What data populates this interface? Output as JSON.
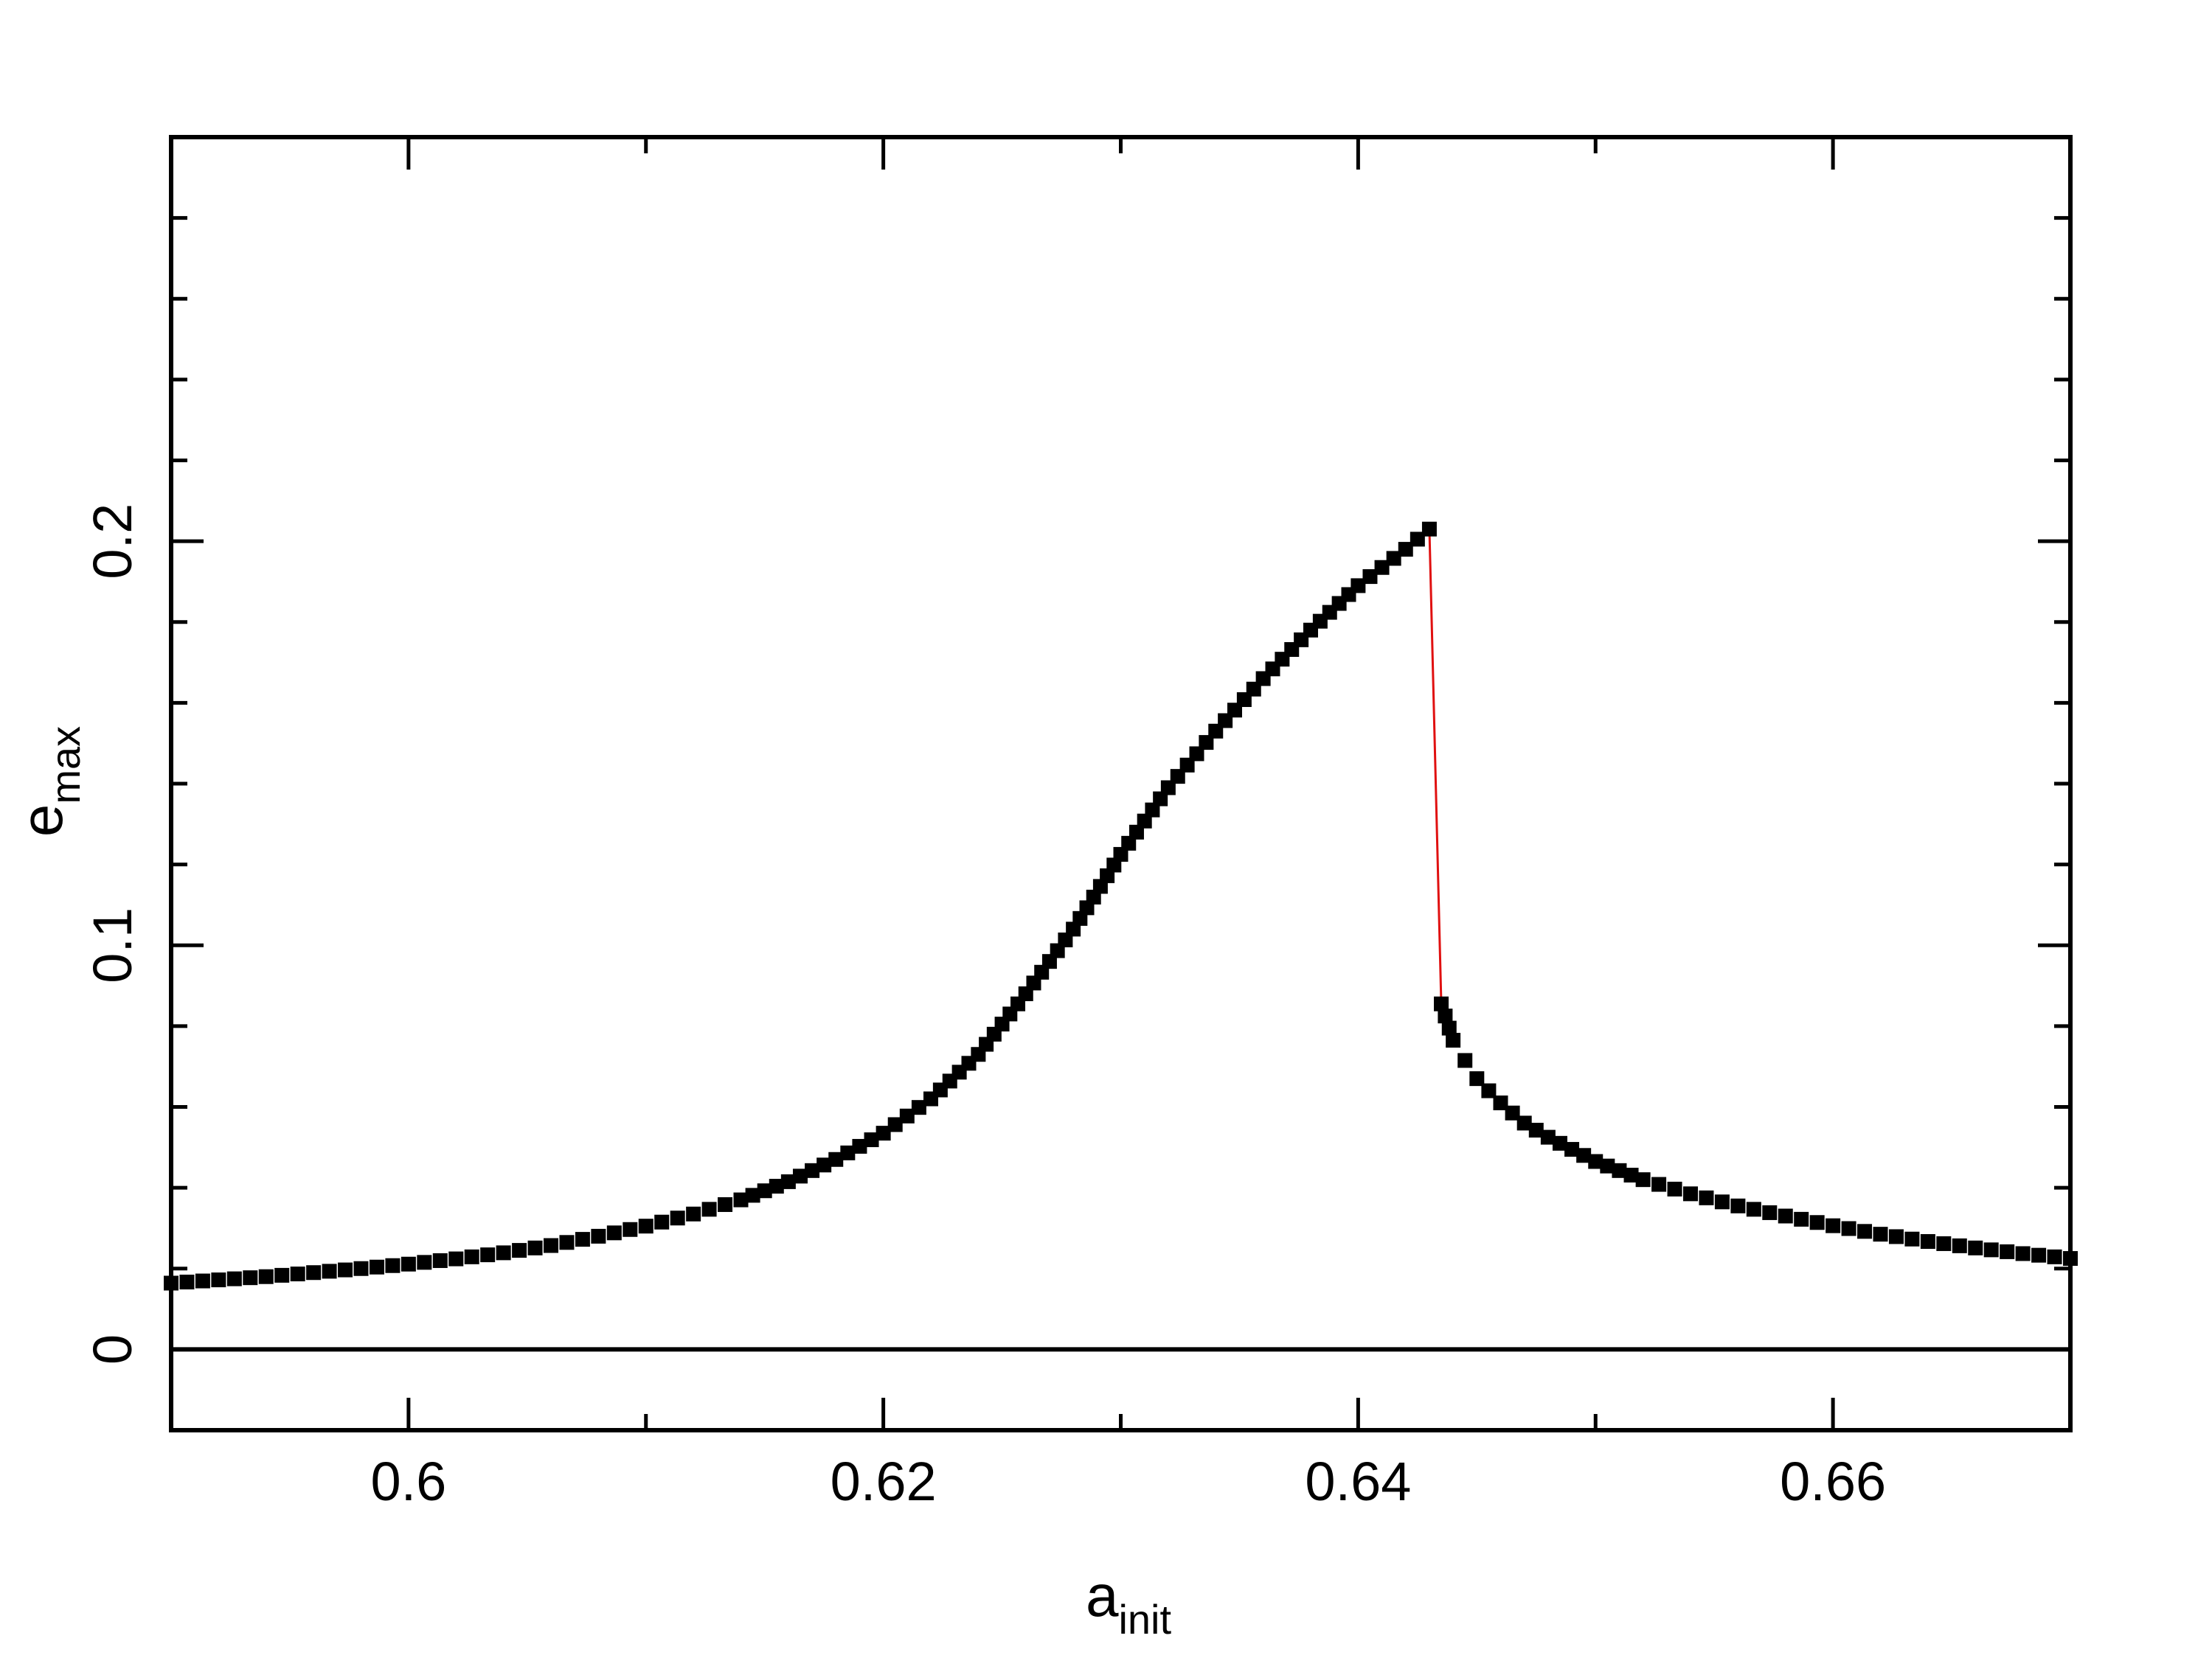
{
  "chart_data": {
    "type": "scatter",
    "title": "",
    "xlabel": "a",
    "xlabel_sub": "init",
    "ylabel": "e",
    "ylabel_sub": "max",
    "xlim": [
      0.59,
      0.67
    ],
    "ylim": [
      -0.02,
      0.3
    ],
    "x_ticks": [
      0.6,
      0.62,
      0.64,
      0.66
    ],
    "x_tick_labels": [
      "0.6",
      "0.62",
      "0.64",
      "0.66"
    ],
    "y_ticks": [
      0,
      0.1,
      0.2
    ],
    "y_tick_labels": [
      "0",
      "0.1",
      "0.2"
    ],
    "zero_line": true,
    "grid": false,
    "colors": {
      "markers": "#000000",
      "jump_line": "#e01010",
      "axes": "#000000"
    },
    "series": [
      {
        "marker": "square",
        "color": "#000000",
        "x": [
          0.59,
          0.592,
          0.594,
          0.596,
          0.598,
          0.6,
          0.602,
          0.604,
          0.606,
          0.608,
          0.61,
          0.612,
          0.614,
          0.616,
          0.618,
          0.62,
          0.622,
          0.624,
          0.626,
          0.628,
          0.63,
          0.632,
          0.634,
          0.636,
          0.638,
          0.64,
          0.642,
          0.643
        ],
        "y": [
          0.0164,
          0.0172,
          0.018,
          0.019,
          0.02,
          0.0211,
          0.0224,
          0.0239,
          0.0257,
          0.028,
          0.0305,
          0.0335,
          0.037,
          0.0415,
          0.047,
          0.0535,
          0.062,
          0.073,
          0.088,
          0.104,
          0.1225,
          0.139,
          0.153,
          0.166,
          0.178,
          0.189,
          0.198,
          0.203
        ]
      },
      {
        "marker": "square",
        "color": "#000000",
        "x": [
          0.6435,
          0.644,
          0.6445,
          0.645,
          0.646,
          0.647,
          0.648,
          0.65,
          0.652,
          0.654,
          0.656,
          0.658,
          0.66,
          0.662,
          0.664,
          0.666,
          0.668,
          0.67
        ],
        "y": [
          0.0855,
          0.0765,
          0.0715,
          0.067,
          0.061,
          0.056,
          0.0525,
          0.0465,
          0.042,
          0.0385,
          0.0355,
          0.033,
          0.0306,
          0.0285,
          0.0267,
          0.0251,
          0.0237,
          0.0225
        ]
      }
    ],
    "jump_line": {
      "x": [
        0.643,
        0.6435,
        0.644
      ],
      "y": [
        0.203,
        0.0855,
        0.0765
      ]
    }
  }
}
